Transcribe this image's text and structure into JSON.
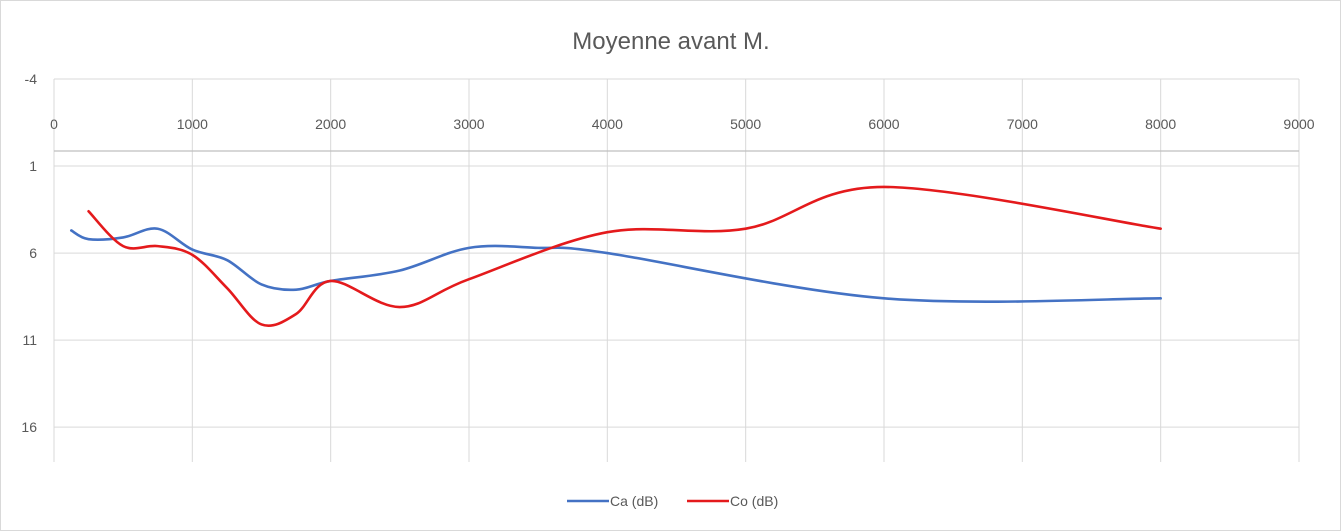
{
  "chart_data": {
    "type": "line",
    "title": "Moyenne avant M.",
    "xlabel": "",
    "ylabel": "",
    "xlim": [
      0,
      9000
    ],
    "ylim": [
      -4,
      18
    ],
    "y_reversed": true,
    "x_ticks": [
      0,
      1000,
      2000,
      3000,
      4000,
      5000,
      6000,
      7000,
      8000,
      9000
    ],
    "y_ticks": [
      -4,
      1,
      6,
      11,
      16
    ],
    "grid": true,
    "legend_position": "bottom",
    "smooth": true,
    "series": [
      {
        "name": "Ca (dB)",
        "color": "#4472C4",
        "x": [
          125,
          250,
          500,
          750,
          1000,
          1250,
          1500,
          1750,
          2000,
          2500,
          3000,
          3500,
          4000,
          6000,
          8000
        ],
        "y": [
          4.7,
          5.2,
          5.1,
          4.6,
          5.8,
          6.4,
          7.8,
          8.1,
          7.6,
          7.0,
          5.7,
          5.7,
          6.0,
          8.6,
          8.6
        ]
      },
      {
        "name": "Co (dB)",
        "color": "#E41A1C",
        "x": [
          250,
          500,
          750,
          1000,
          1250,
          1500,
          1750,
          2000,
          2500,
          3000,
          4000,
          5000,
          6000,
          8000
        ],
        "y": [
          3.6,
          5.6,
          5.6,
          6.1,
          8.0,
          10.1,
          9.5,
          7.6,
          9.1,
          7.5,
          4.8,
          4.6,
          2.2,
          4.6
        ]
      }
    ]
  }
}
